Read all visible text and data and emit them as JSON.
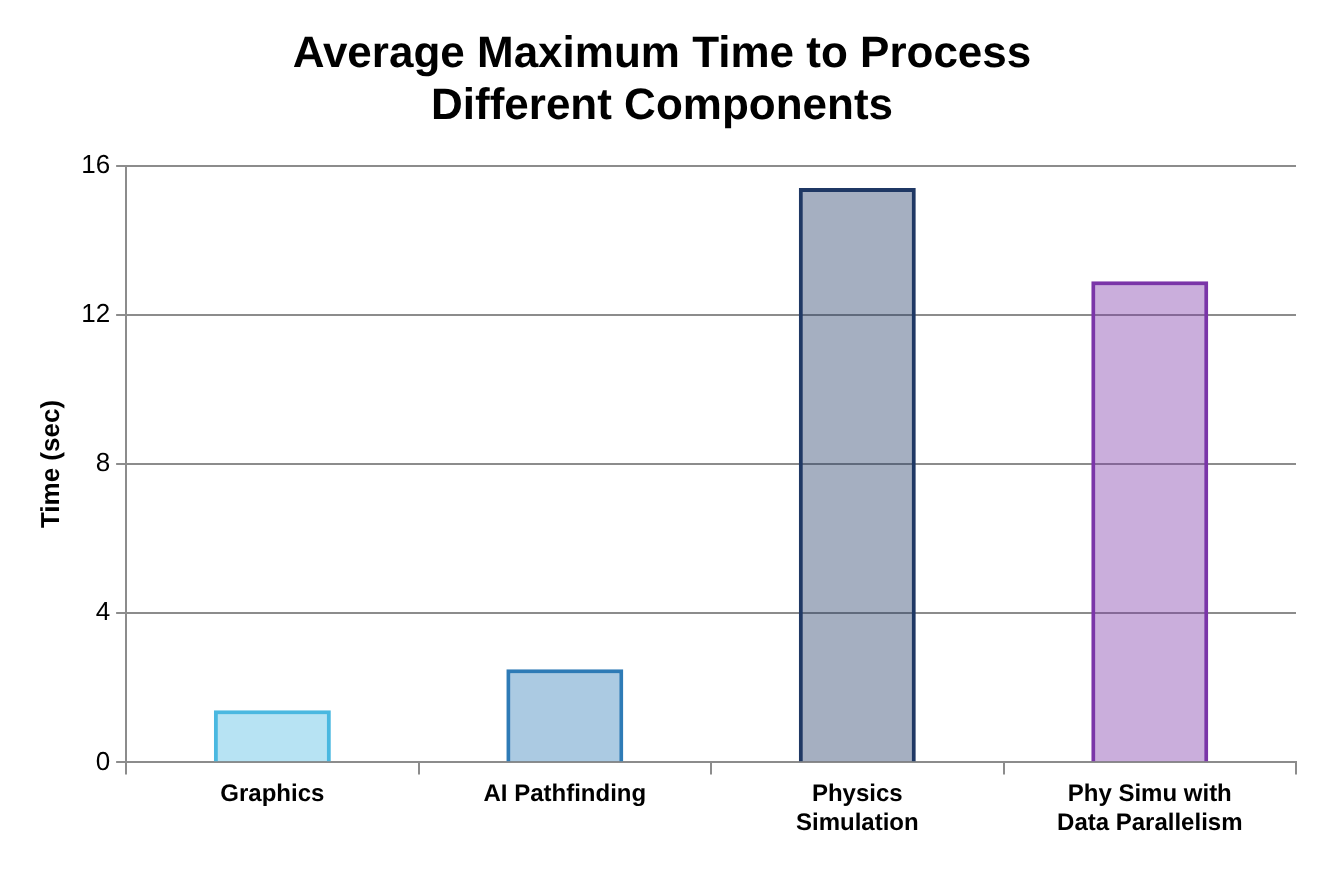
{
  "chart_data": {
    "type": "bar",
    "title": "Average Maximum Time to Process Different Components",
    "ylabel": "Time (sec)",
    "categories": [
      "Graphics",
      "AI Pathfinding",
      "Physics Simulation",
      "Phy Simu with Data Parallelism"
    ],
    "values": [
      1.4,
      2.5,
      15.4,
      12.9
    ],
    "colors": [
      "#4ab8e0",
      "#2e7bb6",
      "#1f3864",
      "#7a35a8"
    ],
    "ylim": [
      0,
      16
    ],
    "yticks": [
      0,
      4,
      8,
      12,
      16
    ],
    "grid": "y",
    "legend": false
  }
}
